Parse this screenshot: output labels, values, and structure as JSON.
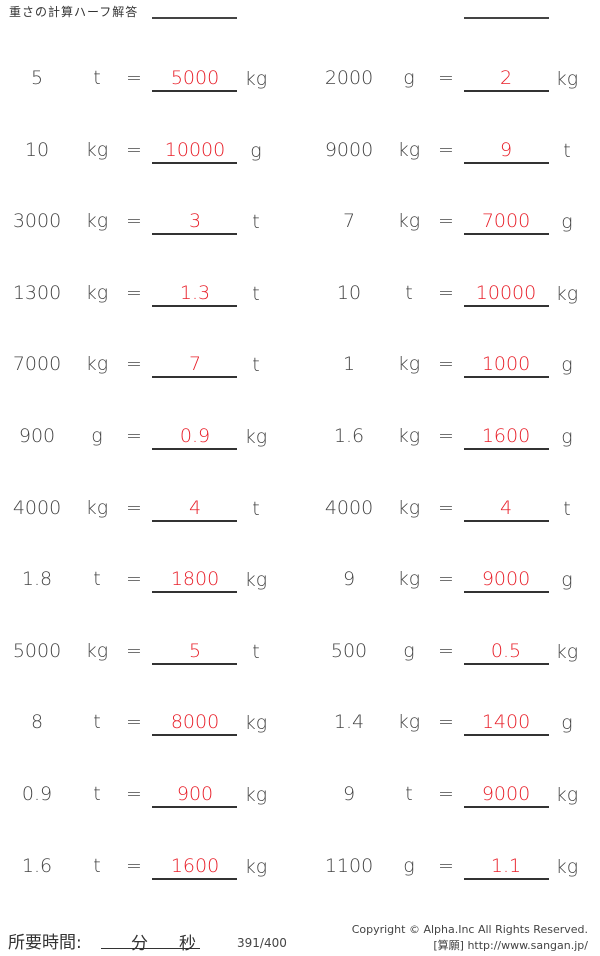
{
  "header": {
    "title": "重さの計算ハーフ解答"
  },
  "problems": [
    [
      {
        "value": "5",
        "unit": "t",
        "answer": "5000",
        "result_unit": "kg"
      },
      {
        "value": "2000",
        "unit": "g",
        "answer": "2",
        "result_unit": "kg"
      }
    ],
    [
      {
        "value": "10",
        "unit": "kg",
        "answer": "10000",
        "result_unit": "g"
      },
      {
        "value": "9000",
        "unit": "kg",
        "answer": "9",
        "result_unit": "t"
      }
    ],
    [
      {
        "value": "3000",
        "unit": "kg",
        "answer": "3",
        "result_unit": "t"
      },
      {
        "value": "7",
        "unit": "kg",
        "answer": "7000",
        "result_unit": "g"
      }
    ],
    [
      {
        "value": "1300",
        "unit": "kg",
        "answer": "1.3",
        "result_unit": "t"
      },
      {
        "value": "10",
        "unit": "t",
        "answer": "10000",
        "result_unit": "kg"
      }
    ],
    [
      {
        "value": "7000",
        "unit": "kg",
        "answer": "7",
        "result_unit": "t"
      },
      {
        "value": "1",
        "unit": "kg",
        "answer": "1000",
        "result_unit": "g"
      }
    ],
    [
      {
        "value": "900",
        "unit": "g",
        "answer": "0.9",
        "result_unit": "kg"
      },
      {
        "value": "1.6",
        "unit": "kg",
        "answer": "1600",
        "result_unit": "g"
      }
    ],
    [
      {
        "value": "4000",
        "unit": "kg",
        "answer": "4",
        "result_unit": "t"
      },
      {
        "value": "4000",
        "unit": "kg",
        "answer": "4",
        "result_unit": "t"
      }
    ],
    [
      {
        "value": "1.8",
        "unit": "t",
        "answer": "1800",
        "result_unit": "kg"
      },
      {
        "value": "9",
        "unit": "kg",
        "answer": "9000",
        "result_unit": "g"
      }
    ],
    [
      {
        "value": "5000",
        "unit": "kg",
        "answer": "5",
        "result_unit": "t"
      },
      {
        "value": "500",
        "unit": "g",
        "answer": "0.5",
        "result_unit": "kg"
      }
    ],
    [
      {
        "value": "8",
        "unit": "t",
        "answer": "8000",
        "result_unit": "kg"
      },
      {
        "value": "1.4",
        "unit": "kg",
        "answer": "1400",
        "result_unit": "g"
      }
    ],
    [
      {
        "value": "0.9",
        "unit": "t",
        "answer": "900",
        "result_unit": "kg"
      },
      {
        "value": "9",
        "unit": "t",
        "answer": "9000",
        "result_unit": "kg"
      }
    ],
    [
      {
        "value": "1.6",
        "unit": "t",
        "answer": "1600",
        "result_unit": "kg"
      },
      {
        "value": "1100",
        "unit": "g",
        "answer": "1.1",
        "result_unit": "kg"
      }
    ]
  ],
  "equals": "=",
  "footer": {
    "time_label": "所要時間:",
    "minutes": "分",
    "seconds": "秒",
    "page": "391/400",
    "copyright": "Copyright © Alpha.Inc All Rights Reserved.",
    "site": "[算願] http://www.sangan.jp/"
  },
  "colors": {
    "answer": "#e8202a"
  }
}
